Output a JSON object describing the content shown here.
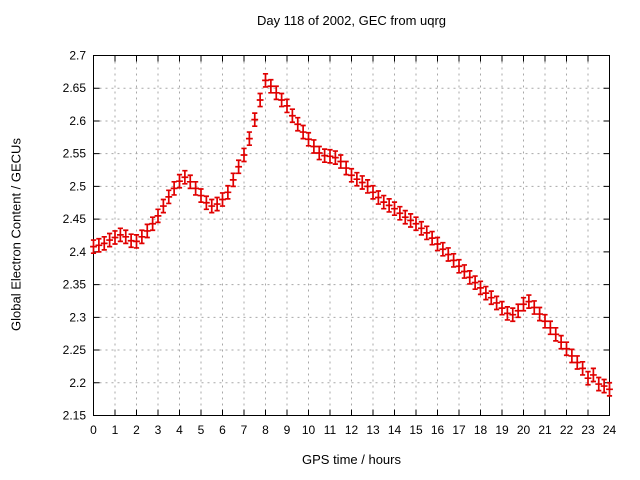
{
  "title": "Day 118 of 2002, GEC from uqrg",
  "chart_data": {
    "type": "scatter",
    "marker": "plus-with-yerrorbars",
    "title": "Day 118 of 2002, GEC from uqrg",
    "xlabel": "GPS time / hours",
    "ylabel": "Global Electron Content / GECUs",
    "xlim": [
      0,
      24
    ],
    "ylim": [
      2.15,
      2.7
    ],
    "grid": true,
    "grid_style": "dashed-gray",
    "series_color": "#e00000",
    "axis_color": "#000000",
    "grid_color": "#a8a8a8",
    "x_ticks": [
      0,
      1,
      2,
      3,
      4,
      5,
      6,
      7,
      8,
      9,
      10,
      11,
      12,
      13,
      14,
      15,
      16,
      17,
      18,
      19,
      20,
      21,
      22,
      23,
      24
    ],
    "y_ticks": [
      2.15,
      2.2,
      2.25,
      2.3,
      2.35,
      2.4,
      2.45,
      2.5,
      2.55,
      2.6,
      2.65,
      2.7
    ],
    "y_tick_labels": [
      "2.15",
      "2.2",
      "2.25",
      "2.3",
      "2.35",
      "2.4",
      "2.45",
      "2.5",
      "2.55",
      "2.6",
      "2.65",
      "2.7"
    ],
    "y_error": 0.01,
    "x": [
      0,
      0.25,
      0.5,
      0.75,
      1,
      1.25,
      1.5,
      1.75,
      2,
      2.25,
      2.5,
      2.75,
      3,
      3.25,
      3.5,
      3.75,
      4,
      4.25,
      4.5,
      4.75,
      5,
      5.25,
      5.5,
      5.75,
      6,
      6.25,
      6.5,
      6.75,
      7,
      7.25,
      7.5,
      7.75,
      8,
      8.25,
      8.5,
      8.75,
      9,
      9.25,
      9.5,
      9.75,
      10,
      10.25,
      10.5,
      10.75,
      11,
      11.25,
      11.5,
      11.75,
      12,
      12.25,
      12.5,
      12.75,
      13,
      13.25,
      13.5,
      13.75,
      14,
      14.25,
      14.5,
      14.75,
      15,
      15.25,
      15.5,
      15.75,
      16,
      16.25,
      16.5,
      16.75,
      17,
      17.25,
      17.5,
      17.75,
      18,
      18.25,
      18.5,
      18.75,
      19,
      19.25,
      19.5,
      19.75,
      20,
      20.25,
      20.5,
      20.75,
      21,
      21.25,
      21.5,
      21.75,
      22,
      22.25,
      22.5,
      22.75,
      23,
      23.25,
      23.5,
      23.75,
      24
    ],
    "y": [
      2.408,
      2.41,
      2.413,
      2.418,
      2.422,
      2.426,
      2.423,
      2.417,
      2.416,
      2.423,
      2.432,
      2.443,
      2.455,
      2.47,
      2.484,
      2.497,
      2.508,
      2.514,
      2.507,
      2.497,
      2.486,
      2.475,
      2.47,
      2.473,
      2.48,
      2.491,
      2.51,
      2.53,
      2.548,
      2.573,
      2.602,
      2.632,
      2.662,
      2.653,
      2.643,
      2.632,
      2.623,
      2.608,
      2.595,
      2.583,
      2.572,
      2.561,
      2.551,
      2.547,
      2.546,
      2.544,
      2.538,
      2.528,
      2.517,
      2.511,
      2.506,
      2.5,
      2.491,
      2.483,
      2.476,
      2.471,
      2.466,
      2.459,
      2.453,
      2.448,
      2.443,
      2.436,
      2.429,
      2.421,
      2.412,
      2.404,
      2.396,
      2.387,
      2.378,
      2.37,
      2.361,
      2.353,
      2.345,
      2.337,
      2.33,
      2.322,
      2.314,
      2.306,
      2.304,
      2.31,
      2.32,
      2.324,
      2.315,
      2.305,
      2.294,
      2.284,
      2.274,
      2.262,
      2.252,
      2.241,
      2.231,
      2.222,
      2.207,
      2.212,
      2.198,
      2.195,
      2.19
    ]
  }
}
